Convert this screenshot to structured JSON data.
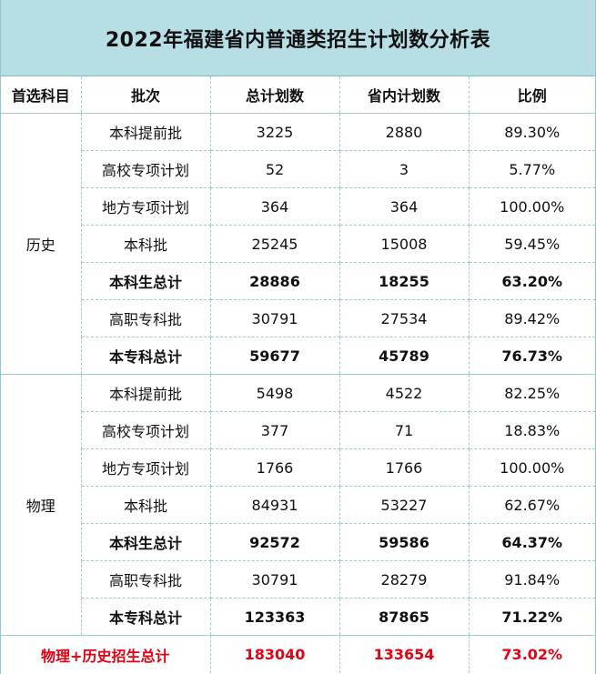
{
  "title": "2022年福建省内普通类招生计划数分析表",
  "headers": [
    "首选科目",
    "批次",
    "总计划数",
    "省内计划数",
    "比例"
  ],
  "groups": [
    {
      "subject": "历史",
      "rows": [
        {
          "batch": "本科提前批",
          "total": "3225",
          "local": "2880",
          "ratio": "89.30%",
          "bold": false
        },
        {
          "batch": "高校专项计划",
          "total": "52",
          "local": "3",
          "ratio": "5.77%",
          "bold": false
        },
        {
          "batch": "地方专项计划",
          "total": "364",
          "local": "364",
          "ratio": "100.00%",
          "bold": false
        },
        {
          "batch": "本科批",
          "total": "25245",
          "local": "15008",
          "ratio": "59.45%",
          "bold": false
        },
        {
          "batch": "本科生总计",
          "total": "28886",
          "local": "18255",
          "ratio": "63.20%",
          "bold": true
        },
        {
          "batch": "高职专科批",
          "total": "30791",
          "local": "27534",
          "ratio": "89.42%",
          "bold": false
        },
        {
          "batch": "本专科总计",
          "total": "59677",
          "local": "45789",
          "ratio": "76.73%",
          "bold": true
        }
      ]
    },
    {
      "subject": "物理",
      "rows": [
        {
          "batch": "本科提前批",
          "total": "5498",
          "local": "4522",
          "ratio": "82.25%",
          "bold": false
        },
        {
          "batch": "高校专项计划",
          "total": "377",
          "local": "71",
          "ratio": "18.83%",
          "bold": false
        },
        {
          "batch": "地方专项计划",
          "total": "1766",
          "local": "1766",
          "ratio": "100.00%",
          "bold": false
        },
        {
          "batch": "本科批",
          "total": "84931",
          "local": "53227",
          "ratio": "62.67%",
          "bold": false
        },
        {
          "batch": "本科生总计",
          "total": "92572",
          "local": "59586",
          "ratio": "64.37%",
          "bold": true
        },
        {
          "batch": "高职专科批",
          "total": "30791",
          "local": "28279",
          "ratio": "91.84%",
          "bold": false
        },
        {
          "batch": "本专科总计",
          "total": "123363",
          "local": "87865",
          "ratio": "71.22%",
          "bold": true
        }
      ]
    }
  ],
  "grand_total": {
    "label": "物理+历史招生总计",
    "total": "183040",
    "local": "133654",
    "ratio": "73.02%"
  },
  "colors": {
    "title_background": "#b7dde5",
    "grid_line": "#9fcdd4",
    "total_text": "#e60012"
  }
}
